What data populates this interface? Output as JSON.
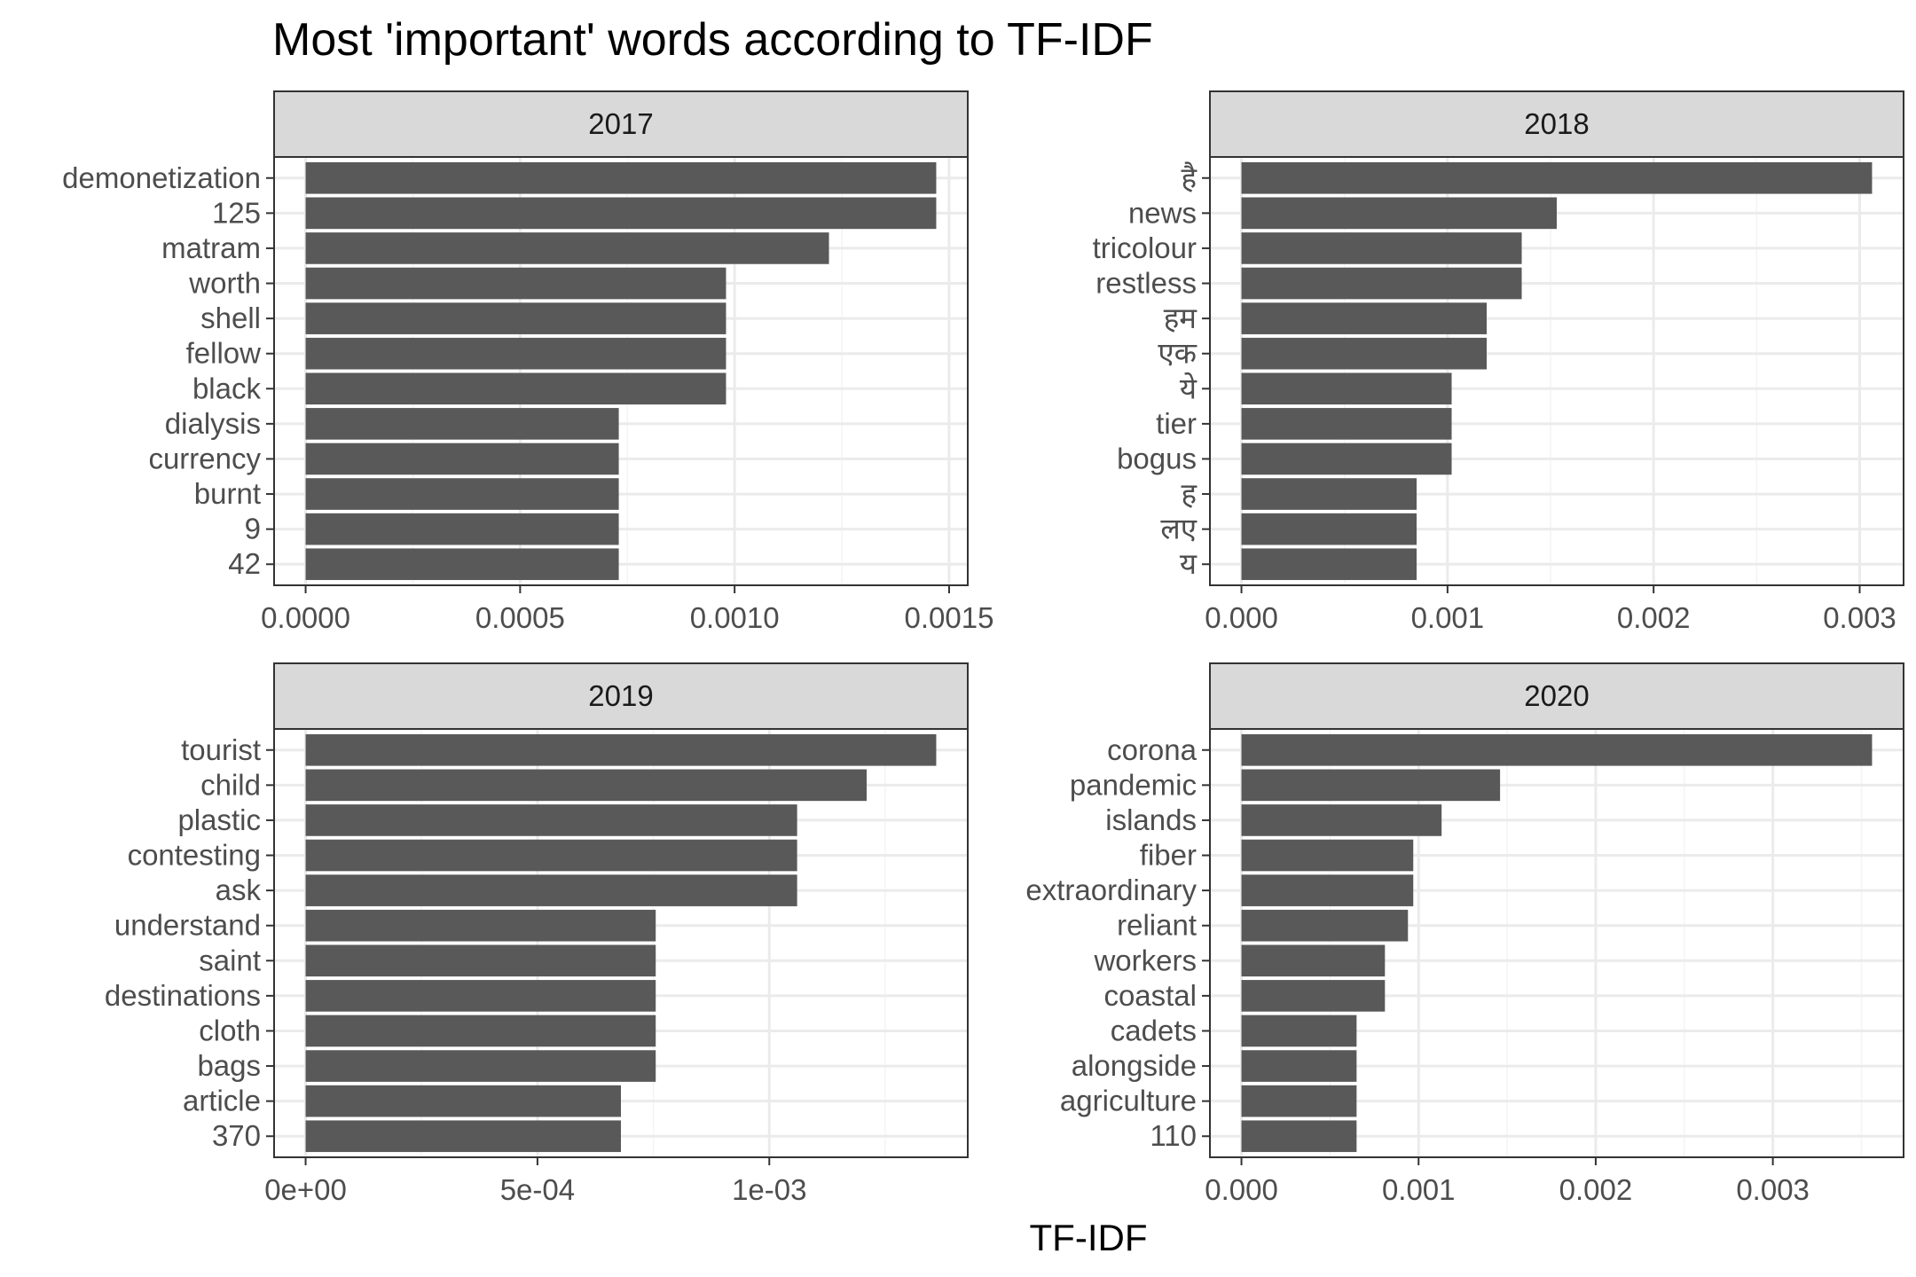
{
  "title": "Most 'important' words according to TF-IDF",
  "xlabel": "TF-IDF",
  "colors": {
    "bar": "#595959",
    "strip_fill": "#d9d9d9",
    "border": "#333333",
    "grid_major": "#ebebeb",
    "grid_minor": "#f4f4f4",
    "background": "#ffffff"
  },
  "chart_data": [
    {
      "type": "bar",
      "orientation": "horizontal",
      "panel": "2017",
      "categories": [
        "demonetization",
        "125",
        "matram",
        "worth",
        "shell",
        "fellow",
        "black",
        "dialysis",
        "currency",
        "burnt",
        "9",
        "42"
      ],
      "values": [
        0.00147,
        0.00147,
        0.00122,
        0.00098,
        0.00098,
        0.00098,
        0.00098,
        0.00073,
        0.00073,
        0.00073,
        0.00073,
        0.00073
      ],
      "xlim": [
        -7.35e-05,
        0.0015435
      ],
      "ticks": [
        0,
        0.0005,
        0.001,
        0.0015
      ],
      "tick_labels": [
        "0.0000",
        "0.0005",
        "0.0010",
        "0.0015"
      ],
      "minor_ticks": [
        0.00025,
        0.00075,
        0.00125
      ],
      "grid": true
    },
    {
      "type": "bar",
      "orientation": "horizontal",
      "panel": "2018",
      "categories": [
        "है",
        "news",
        "tricolour",
        "restless",
        "हम",
        "एक",
        "ये",
        "tier",
        "bogus",
        "ह",
        "लए",
        "य"
      ],
      "values": [
        0.00306,
        0.00153,
        0.00136,
        0.00136,
        0.00119,
        0.00119,
        0.00102,
        0.00102,
        0.00102,
        0.00085,
        0.00085,
        0.00085
      ],
      "xlim": [
        -0.000153,
        0.003213
      ],
      "ticks": [
        0,
        0.001,
        0.002,
        0.003
      ],
      "tick_labels": [
        "0.000",
        "0.001",
        "0.002",
        "0.003"
      ],
      "minor_ticks": [
        0.0005,
        0.0015,
        0.0025
      ],
      "grid": true
    },
    {
      "type": "bar",
      "orientation": "horizontal",
      "panel": "2019",
      "categories": [
        "tourist",
        "child",
        "plastic",
        "contesting",
        "ask",
        "understand",
        "saint",
        "destinations",
        "cloth",
        "bags",
        "article",
        "370"
      ],
      "values": [
        0.00136,
        0.00121,
        0.00106,
        0.00106,
        0.00106,
        0.000755,
        0.000755,
        0.000755,
        0.000755,
        0.000755,
        0.00068,
        0.00068
      ],
      "xlim": [
        -6.8e-05,
        0.001428
      ],
      "ticks": [
        0,
        0.0005,
        0.001
      ],
      "tick_labels": [
        "0e+00",
        "5e-04",
        "1e-03"
      ],
      "minor_ticks": [
        0.00025,
        0.00075,
        0.00125
      ],
      "grid": true
    },
    {
      "type": "bar",
      "orientation": "horizontal",
      "panel": "2020",
      "categories": [
        "corona",
        "pandemic",
        "islands",
        "fiber",
        "extraordinary",
        "reliant",
        "workers",
        "coastal",
        "cadets",
        "alongside",
        "agriculture",
        "110"
      ],
      "values": [
        0.00356,
        0.00146,
        0.00113,
        0.00097,
        0.00097,
        0.00094,
        0.00081,
        0.00081,
        0.00065,
        0.00065,
        0.00065,
        0.00065
      ],
      "xlim": [
        -0.000178,
        0.003738
      ],
      "ticks": [
        0,
        0.001,
        0.002,
        0.003
      ],
      "tick_labels": [
        "0.000",
        "0.001",
        "0.002",
        "0.003"
      ],
      "minor_ticks": [
        0.0005,
        0.0015,
        0.0025,
        0.0035
      ],
      "grid": true
    }
  ]
}
